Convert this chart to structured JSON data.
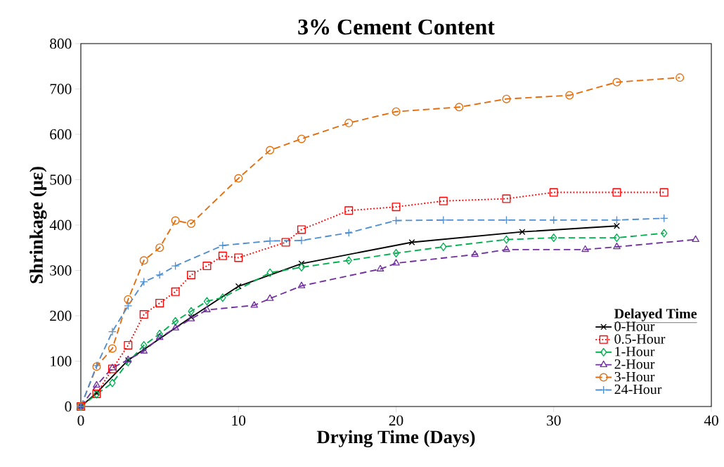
{
  "chart_data": {
    "type": "line",
    "title": "3% Cement Content",
    "xlabel": "Drying Time (Days)",
    "ylabel": "Shrinkage (με)",
    "legend_title": "Delayed Time",
    "xlim": [
      0,
      40
    ],
    "xticks": [
      0,
      10,
      20,
      30,
      40
    ],
    "ylim": [
      0,
      800
    ],
    "yticks": [
      0,
      100,
      200,
      300,
      400,
      500,
      600,
      700,
      800
    ],
    "grid": false,
    "legend": "bottom right",
    "series": [
      {
        "name": "0-Hour",
        "color": "#000000",
        "marker": "cross",
        "line_style": "solid",
        "x": [
          0,
          1,
          3,
          7,
          10,
          14,
          21,
          28,
          34
        ],
        "values": [
          0,
          30,
          102,
          197,
          265,
          315,
          362,
          385,
          398
        ]
      },
      {
        "name": "0.5-Hour",
        "color": "#ff0000",
        "marker": "square",
        "line_style": "dotted",
        "x": [
          0,
          1,
          2,
          3,
          4,
          5,
          6,
          7,
          8,
          9,
          10,
          13,
          14,
          17,
          20,
          23,
          27,
          30,
          34,
          37
        ],
        "values": [
          0,
          28,
          83,
          135,
          203,
          228,
          253,
          290,
          310,
          332,
          328,
          362,
          390,
          432,
          440,
          453,
          458,
          472,
          472,
          472
        ]
      },
      {
        "name": "1-Hour",
        "color": "#00b050",
        "marker": "diamond",
        "line_style": "dashed",
        "x": [
          0,
          1,
          2,
          3,
          4,
          5,
          6,
          7,
          8,
          9,
          12,
          14,
          17,
          20,
          23,
          27,
          30,
          34,
          37
        ],
        "values": [
          0,
          27,
          52,
          98,
          135,
          160,
          188,
          210,
          232,
          240,
          295,
          307,
          322,
          338,
          352,
          368,
          372,
          372,
          382
        ]
      },
      {
        "name": "2-Hour",
        "color": "#7030a0",
        "marker": "triangle",
        "line_style": "dashed",
        "x": [
          0,
          1,
          2,
          3,
          4,
          5,
          6,
          7,
          8,
          11,
          12,
          14,
          19,
          20,
          25,
          27,
          32,
          34,
          39
        ],
        "values": [
          0,
          47,
          85,
          103,
          122,
          152,
          173,
          193,
          213,
          223,
          238,
          266,
          303,
          316,
          335,
          346,
          346,
          352,
          368
        ]
      },
      {
        "name": "3-Hour",
        "color": "#e46c0a",
        "marker": "circle",
        "line_style": "dashed",
        "x": [
          0,
          1,
          2,
          3,
          4,
          5,
          6,
          7,
          10,
          12,
          14,
          17,
          20,
          24,
          27,
          31,
          34,
          38
        ],
        "values": [
          0,
          88,
          128,
          236,
          322,
          350,
          410,
          403,
          503,
          565,
          590,
          625,
          650,
          660,
          678,
          686,
          715,
          725
        ]
      },
      {
        "name": "24-Hour",
        "color": "#4f8fd0",
        "marker": "plus",
        "line_style": "dashed",
        "x": [
          0,
          1,
          2,
          3,
          4,
          5,
          6,
          9,
          12,
          14,
          17,
          20,
          23,
          27,
          30,
          34,
          37
        ],
        "values": [
          0,
          90,
          165,
          222,
          275,
          290,
          310,
          355,
          365,
          366,
          383,
          410,
          411,
          411,
          411,
          411,
          415
        ]
      }
    ]
  }
}
